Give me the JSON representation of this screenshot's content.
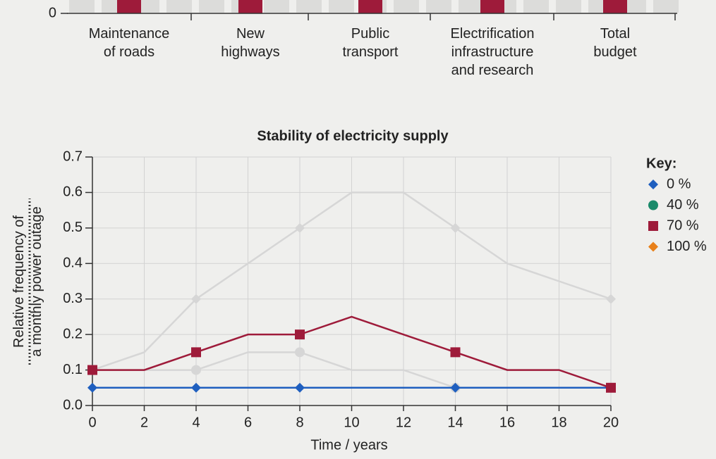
{
  "chart_data": [
    {
      "type": "bar",
      "categories": [
        "Maintenance\nof roads",
        "New\nhighways",
        "Public\ntransport",
        "Electrification\ninfrastructure\nand research",
        "Total\nbudget"
      ],
      "color": "#9e1b3a",
      "yticks": [
        0
      ]
    },
    {
      "type": "line",
      "title": "Stability of electricity supply",
      "xlabel": "Time / years",
      "ylabel": "Relative frequency of\na monthly power outage",
      "x": [
        0,
        2,
        4,
        6,
        8,
        10,
        12,
        14,
        16,
        18,
        20
      ],
      "xlim": [
        0,
        20
      ],
      "xticks": [
        0,
        2,
        4,
        6,
        8,
        10,
        12,
        14,
        16,
        18,
        20
      ],
      "ylim": [
        0,
        0.7
      ],
      "yticks": [
        {
          "value": 0,
          "label": "0.0"
        },
        0.1,
        0.2,
        0.3,
        0.4,
        0.5,
        0.6,
        0.7
      ],
      "grid": true,
      "legend_title": "Key:",
      "legend": "right",
      "marker_indices": [
        0,
        2,
        4,
        7,
        10
      ],
      "inactive_color": "#d6d6d6",
      "series": [
        {
          "name": "0 %",
          "color": "#1f5fbf",
          "marker": "diamond",
          "active": true,
          "values": [
            0.05,
            0.05,
            0.05,
            0.05,
            0.05,
            0.05,
            0.05,
            0.05,
            0.05,
            0.05,
            0.05
          ]
        },
        {
          "name": "40 %",
          "color": "#1a8a6a",
          "marker": "circle",
          "active": false,
          "values": [
            0.1,
            0.1,
            0.1,
            0.15,
            0.15,
            0.1,
            0.1,
            0.05,
            0.05,
            0.05,
            0.05
          ]
        },
        {
          "name": "70 %",
          "color": "#9e1b3a",
          "marker": "square",
          "active": true,
          "values": [
            0.1,
            0.1,
            0.15,
            0.2,
            0.2,
            0.25,
            0.2,
            0.15,
            0.1,
            0.1,
            0.05
          ]
        },
        {
          "name": "100 %",
          "color": "#e8801a",
          "marker": "diamond",
          "active": false,
          "values": [
            0.1,
            0.15,
            0.3,
            0.4,
            0.5,
            0.6,
            0.6,
            0.5,
            0.4,
            0.35,
            0.3
          ]
        }
      ]
    }
  ]
}
